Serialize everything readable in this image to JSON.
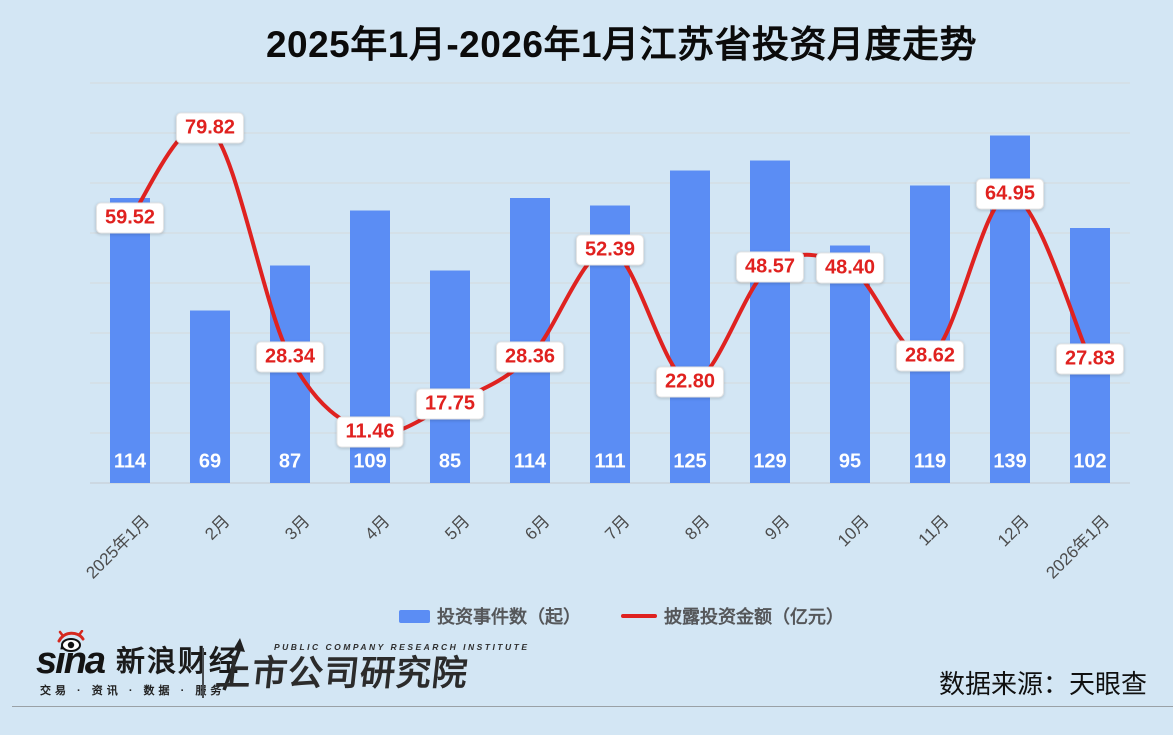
{
  "title": "2025年1月-2026年1月江苏省投资月度走势",
  "chart_data": {
    "type": "bar+line",
    "categories": [
      "2025年1月",
      "2月",
      "3月",
      "4月",
      "5月",
      "6月",
      "7月",
      "8月",
      "9月",
      "10月",
      "11月",
      "12月",
      "2026年1月"
    ],
    "series": [
      {
        "name": "投资事件数（起）",
        "type": "bar",
        "axis": "left",
        "values": [
          114,
          69,
          87,
          109,
          85,
          114,
          111,
          125,
          129,
          95,
          119,
          139,
          102
        ]
      },
      {
        "name": "披露投资金额（亿元）",
        "type": "line",
        "axis": "right",
        "values": [
          59.52,
          79.82,
          28.34,
          11.46,
          17.75,
          28.36,
          52.39,
          22.8,
          48.57,
          48.4,
          28.62,
          64.95,
          27.83
        ],
        "labels": [
          "59.52",
          "79.82",
          "28.34",
          "11.46",
          "17.75",
          "28.36",
          "52.39",
          "22.80",
          "48.57",
          "48.40",
          "28.62",
          "64.95",
          "27.83"
        ]
      }
    ],
    "ylim_left": [
      0,
      160
    ],
    "ylim_right": [
      0,
      90
    ],
    "grid": true,
    "legend_position": "bottom",
    "x_label_rotation": 45
  },
  "colors": {
    "background": "#d3e6f4",
    "bar": "#5b8df4",
    "line": "#df2220",
    "label_red": "#e0211f",
    "grid": "#d5d9db",
    "axis": "#c4cacf"
  },
  "footer": {
    "sina_logo_text": "sina",
    "sina_brand": "新浪财经",
    "sina_tagline": "交易 · 资讯 · 数据 · 服务",
    "pcri_small": "PUBLIC COMPANY RESEARCH INSTITUTE",
    "pcri_main": "上市公司研究院",
    "source": "数据来源：天眼查"
  }
}
